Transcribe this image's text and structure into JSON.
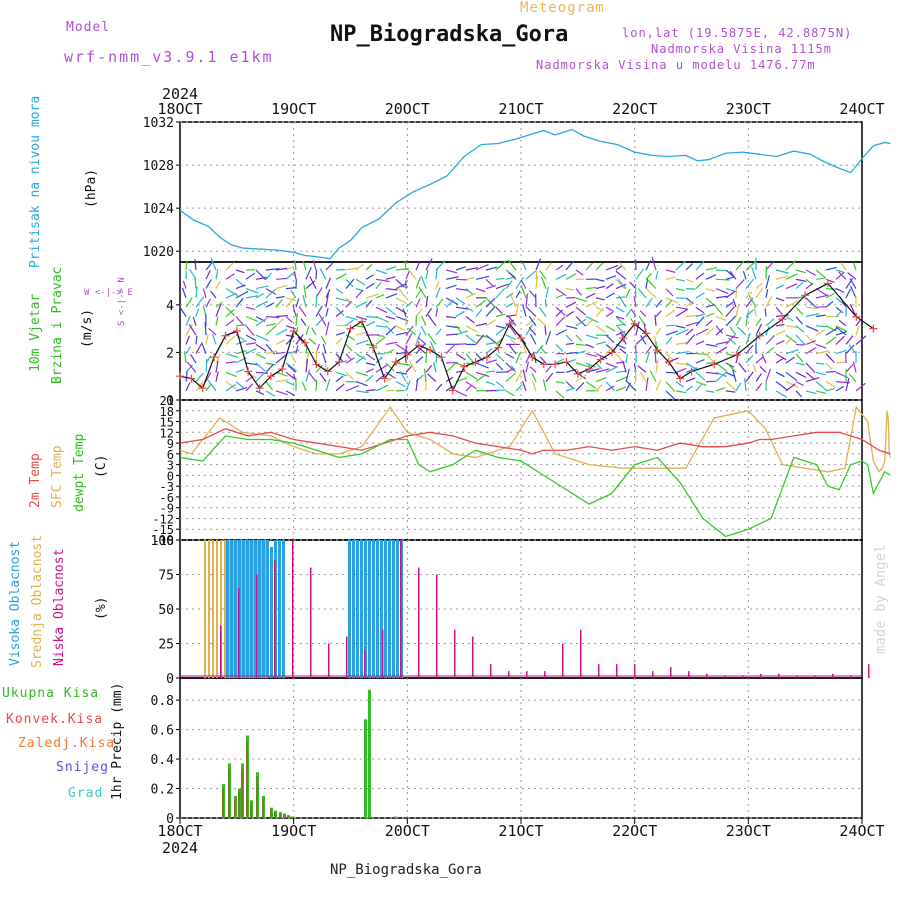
{
  "header": {
    "model_label": "Model",
    "model_name": "wrf-nmm_v3.9.1  e1km",
    "meteogram": "Meteogram",
    "station": "NP_Biogradska_Gora",
    "lonlat": "lon,lat (19.5875E, 42.8875N)",
    "altitude": "Nadmorska Visina 1115m",
    "model_altitude": "Nadmorska Visina u modelu 1476.77m",
    "footer_station": "NP_Biogradska_Gora",
    "watermark": "made by Angel"
  },
  "time_axis": {
    "year": "2024",
    "labels": [
      "18OCT",
      "19OCT",
      "20OCT",
      "21OCT",
      "22OCT",
      "23OCT",
      "24OCT"
    ]
  },
  "panel_labels": {
    "pressure": [
      "Pritisak na nivou mora",
      "(hPa)"
    ],
    "wind": [
      "10m Vjetar",
      "Brzina i Pravac",
      "(m/s)"
    ],
    "wind_compass": "W <-|-> E",
    "wind_compass_ns": "S <-|-> N",
    "temp": [
      "2m Temp",
      "SFC Temp",
      "dewpt Temp",
      "(C)"
    ],
    "cloud": [
      "Visoka Oblacnost",
      "Srednja Oblacnost",
      "Niska Oblacnost",
      "(%)"
    ],
    "precip": [
      "Ukupna Kisa",
      "Konvek.Kisa",
      "Zaledj.Kisa",
      "Snijeg",
      "Grad"
    ],
    "precip_unit": "1hr Precip (mm)"
  },
  "colors": {
    "pressure": "#29a8e0",
    "temp2m": "#e84a4a",
    "sfc": "#e0b050",
    "dewpt": "#33cc22",
    "cloud_high": "#29a0e0",
    "cloud_mid": "#e0b050",
    "cloud_low": "#cc1188",
    "precip_total": "#33bb22",
    "precip_conv": "#e84a4a",
    "precip_frz": "#f07830",
    "snow": "#5050e0",
    "graupel": "#40c8c8",
    "label_purple": "#b04fd6",
    "label_orange": "#e8b85a"
  },
  "chart_data": [
    {
      "type": "line",
      "series": [
        {
          "values": [
            1023.8,
            1022.9,
            1022.3,
            1021.3,
            1020.6,
            1020.3,
            1020.2,
            1020.1,
            1019.9,
            1019.6,
            1019.5,
            1019.3,
            1020.3,
            1021.0,
            1022.2,
            1023.0,
            1024.5,
            1025.5,
            1026.2,
            1027.0,
            1028.8,
            1029.9,
            1030.0,
            1030.4,
            1030.9,
            1031.2,
            1030.8,
            1031.3,
            1030.7,
            1030.2,
            1029.9,
            1029.2,
            1028.9,
            1028.8,
            1028.9,
            1028.4,
            1028.5,
            1029.1,
            1029.2,
            1029.0,
            1028.8,
            1029.3,
            1029.0,
            1028.4,
            1027.7,
            1027.3,
            1028.6,
            1029.8,
            1030.1,
            1030.0
          ],
          "x": [
            0,
            0.12,
            0.25,
            0.35,
            0.45,
            0.55,
            0.7,
            0.85,
            1.0,
            1.1,
            1.2,
            1.32,
            1.4,
            1.5,
            1.6,
            1.75,
            1.9,
            2.05,
            2.2,
            2.35,
            2.5,
            2.65,
            2.8,
            2.95,
            3.1,
            3.2,
            3.3,
            3.45,
            3.55,
            3.7,
            3.85,
            4.0,
            4.15,
            4.3,
            4.45,
            4.55,
            4.65,
            4.8,
            4.95,
            5.1,
            5.25,
            5.4,
            5.55,
            5.65,
            5.8,
            5.9,
            6.0,
            6.1,
            6.2,
            6.25
          ]
        }
      ],
      "ylim": [
        1019,
        1032
      ],
      "yticks": [
        1020,
        1024,
        1028,
        1032
      ],
      "grid": true
    },
    {
      "type": "line",
      "series": [
        {
          "values": [
            1.0,
            0.9,
            0.5,
            1.8,
            2.7,
            2.9,
            1.2,
            0.5,
            1.0,
            1.3,
            2.9,
            2.4,
            1.5,
            1.2,
            1.6,
            3.0,
            3.3,
            2.2,
            0.9,
            1.6,
            1.9,
            2.3,
            2.1,
            1.8,
            0.4,
            1.4,
            1.6,
            1.8,
            2.2,
            3.2,
            2.6,
            1.8,
            1.5,
            1.5,
            1.6,
            1.1,
            1.3,
            1.7,
            2.0,
            2.6,
            3.2,
            2.8,
            2.1,
            1.6,
            0.9,
            1.2,
            1.5,
            1.9,
            2.7,
            3.4,
            4.4,
            4.9,
            3.5,
            3.0
          ],
          "x": [
            0,
            0.1,
            0.2,
            0.3,
            0.4,
            0.5,
            0.6,
            0.7,
            0.8,
            0.9,
            1.0,
            1.1,
            1.2,
            1.3,
            1.4,
            1.5,
            1.6,
            1.7,
            1.8,
            1.9,
            2.0,
            2.1,
            2.2,
            2.3,
            2.4,
            2.5,
            2.6,
            2.7,
            2.8,
            2.9,
            3.0,
            3.1,
            3.2,
            3.3,
            3.4,
            3.5,
            3.6,
            3.7,
            3.8,
            3.9,
            4.0,
            4.1,
            4.2,
            4.3,
            4.4,
            4.5,
            4.7,
            4.9,
            5.1,
            5.3,
            5.5,
            5.7,
            5.95,
            6.1
          ]
        }
      ],
      "ylim": [
        0,
        5.8
      ],
      "yticks": [
        0,
        2,
        4
      ],
      "grid": true
    },
    {
      "type": "line",
      "series": [
        {
          "name": "2m Temp",
          "values": [
            9,
            10,
            13,
            11,
            12,
            10,
            9,
            8,
            7,
            9,
            11,
            12,
            11,
            9,
            8,
            7,
            6,
            7,
            7,
            8,
            7,
            8,
            7,
            9,
            8,
            8,
            9,
            10,
            10,
            11,
            12,
            12,
            11,
            10,
            9,
            8,
            7,
            6
          ],
          "x": [
            0,
            0.2,
            0.4,
            0.6,
            0.8,
            1.0,
            1.2,
            1.4,
            1.6,
            1.8,
            2.0,
            2.2,
            2.4,
            2.6,
            2.8,
            3.0,
            3.1,
            3.2,
            3.4,
            3.6,
            3.8,
            4.0,
            4.2,
            4.4,
            4.6,
            4.8,
            5.0,
            5.1,
            5.2,
            5.4,
            5.6,
            5.8,
            5.9,
            6.0,
            6.05,
            6.1,
            6.15,
            6.25
          ]
        },
        {
          "name": "SFC Temp",
          "values": [
            7,
            6,
            16,
            12,
            11,
            8,
            6,
            6,
            8,
            19,
            12,
            10,
            6,
            5,
            8,
            18,
            6,
            3,
            2,
            2,
            2,
            16,
            18,
            13,
            3,
            2,
            1,
            2,
            19,
            15,
            4,
            1,
            2,
            4,
            18,
            16,
            6,
            5
          ],
          "x": [
            0,
            0.1,
            0.35,
            0.55,
            0.8,
            1.0,
            1.2,
            1.4,
            1.6,
            1.85,
            2.0,
            2.2,
            2.4,
            2.6,
            2.9,
            3.1,
            3.3,
            3.6,
            3.9,
            4.2,
            4.45,
            4.7,
            5.0,
            5.15,
            5.3,
            5.5,
            5.7,
            5.85,
            5.95,
            6.05,
            6.1,
            6.15,
            6.18,
            6.2,
            6.22,
            6.23,
            6.24,
            6.25
          ]
        },
        {
          "name": "dewpt Temp",
          "values": [
            5,
            4,
            11,
            10,
            10,
            9,
            7,
            5,
            6,
            10,
            10,
            3,
            1,
            3,
            7,
            5,
            4,
            0,
            -4,
            -8,
            -5,
            3,
            5,
            -2,
            -12,
            -17,
            -15,
            -12,
            5,
            3,
            -3,
            -4,
            3,
            4,
            3,
            -5,
            1,
            0
          ],
          "x": [
            0,
            0.2,
            0.4,
            0.6,
            0.8,
            1.0,
            1.2,
            1.4,
            1.6,
            1.85,
            2.0,
            2.1,
            2.2,
            2.4,
            2.6,
            2.8,
            3.0,
            3.2,
            3.4,
            3.6,
            3.8,
            4.0,
            4.2,
            4.4,
            4.6,
            4.8,
            5.0,
            5.2,
            5.4,
            5.6,
            5.7,
            5.8,
            5.9,
            6.0,
            6.05,
            6.1,
            6.2,
            6.25
          ]
        }
      ],
      "ylim": [
        -18,
        21
      ],
      "yticks": [
        -18,
        -15,
        -12,
        -9,
        -6,
        -3,
        0,
        3,
        6,
        9,
        12,
        15,
        18,
        21
      ],
      "grid": true
    },
    {
      "type": "bar",
      "series": [
        {
          "name": "Visoka Oblacnost",
          "values": [
            100,
            100,
            100,
            100,
            100,
            100,
            100,
            100,
            100,
            100,
            100,
            95,
            100,
            100,
            100,
            100,
            100,
            100,
            100,
            100,
            100,
            100,
            100,
            100,
            100,
            100,
            100,
            100,
            100
          ]
        },
        {
          "name": "Srednja Oblacnost",
          "values": [
            100,
            100,
            100,
            100,
            100,
            100,
            100,
            100,
            100,
            100,
            100,
            100,
            100,
            100,
            100,
            100
          ]
        },
        {
          "name": "Niska Oblacnost",
          "values": [
            38,
            65,
            75,
            85,
            100,
            80,
            25,
            30,
            20,
            35,
            100,
            80,
            75,
            35,
            30,
            10,
            5,
            5,
            5,
            25,
            35,
            10,
            10,
            10,
            5,
            8,
            5,
            3,
            2,
            2,
            3,
            3,
            2,
            2,
            3,
            2,
            10
          ]
        }
      ],
      "ylim": [
        0,
        100
      ],
      "yticks": [
        0,
        25,
        50,
        75,
        100
      ],
      "grid": true
    },
    {
      "type": "bar",
      "series": [
        {
          "name": "Ukupna Kisa",
          "values": [
            0.23,
            0.37,
            0.15,
            0.2,
            0.37,
            0.56,
            0.12,
            0.31,
            0.15,
            0.07,
            0.05,
            0.04,
            0.03,
            0.02,
            0.01,
            0.67,
            0.87,
            0.01
          ]
        },
        {
          "name": "Konvek.Kisa",
          "values": [
            0.2,
            0.33,
            0.13,
            0.18,
            0.33,
            0.52,
            0.1,
            0.28,
            0.13,
            0.06,
            0.04,
            0.03,
            0.02,
            0.01,
            0.0,
            0.0,
            0.0,
            0.0
          ]
        }
      ],
      "ylim": [
        0,
        0.95
      ],
      "yticks": [
        0,
        0.2,
        0.4,
        0.6,
        0.8
      ],
      "grid": true
    }
  ]
}
